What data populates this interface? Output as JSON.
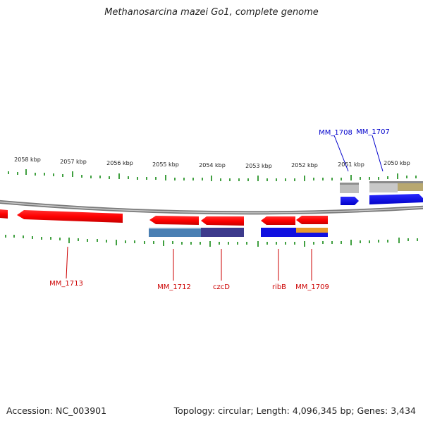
{
  "title": "Methanosarcina mazei Go1, complete genome",
  "footer": {
    "accession": "Accession: NC_003901",
    "summary": "Topology: circular; Length: 4,096,345 bp; Genes: 3,434"
  },
  "scale_labels": [
    "2058 kbp",
    "2057 kbp",
    "2056 kbp",
    "2055 kbp",
    "2054 kbp",
    "2053 kbp",
    "2052 kbp",
    "2051 kbp",
    "2050 kbp"
  ],
  "gene_labels": {
    "top": [
      "MM_1708",
      "MM_1707"
    ],
    "bottom": [
      "MM_1713",
      "MM_1712",
      "czcD",
      "ribB",
      "MM_1709"
    ]
  },
  "colors": {
    "gene_red": "#ff0000",
    "gene_blue": "#0000ff",
    "label_red": "#cc0000",
    "label_blue": "#0000cc",
    "tick_green": "#007700",
    "backbone": "#888888"
  }
}
